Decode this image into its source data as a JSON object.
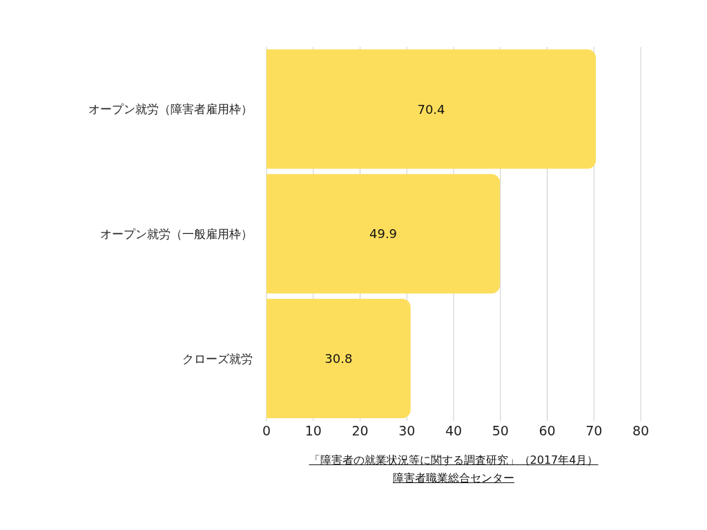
{
  "chart_data": {
    "type": "bar",
    "orientation": "horizontal",
    "categories": [
      "オープン就労（障害者雇用枠）",
      "オープン就労（一般雇用枠）",
      "クローズ就労"
    ],
    "values": [
      70.4,
      49.9,
      30.8
    ],
    "color": "#fdde5c",
    "xlim": [
      0,
      80
    ],
    "xticks": [
      0,
      10,
      20,
      30,
      40,
      50,
      60,
      70,
      80
    ],
    "grid": "x",
    "data_labels": true,
    "annotations": [
      "「障害者の就業状況等に関する調査研究」（2017年4月）",
      "障害者職業総合センター"
    ]
  }
}
